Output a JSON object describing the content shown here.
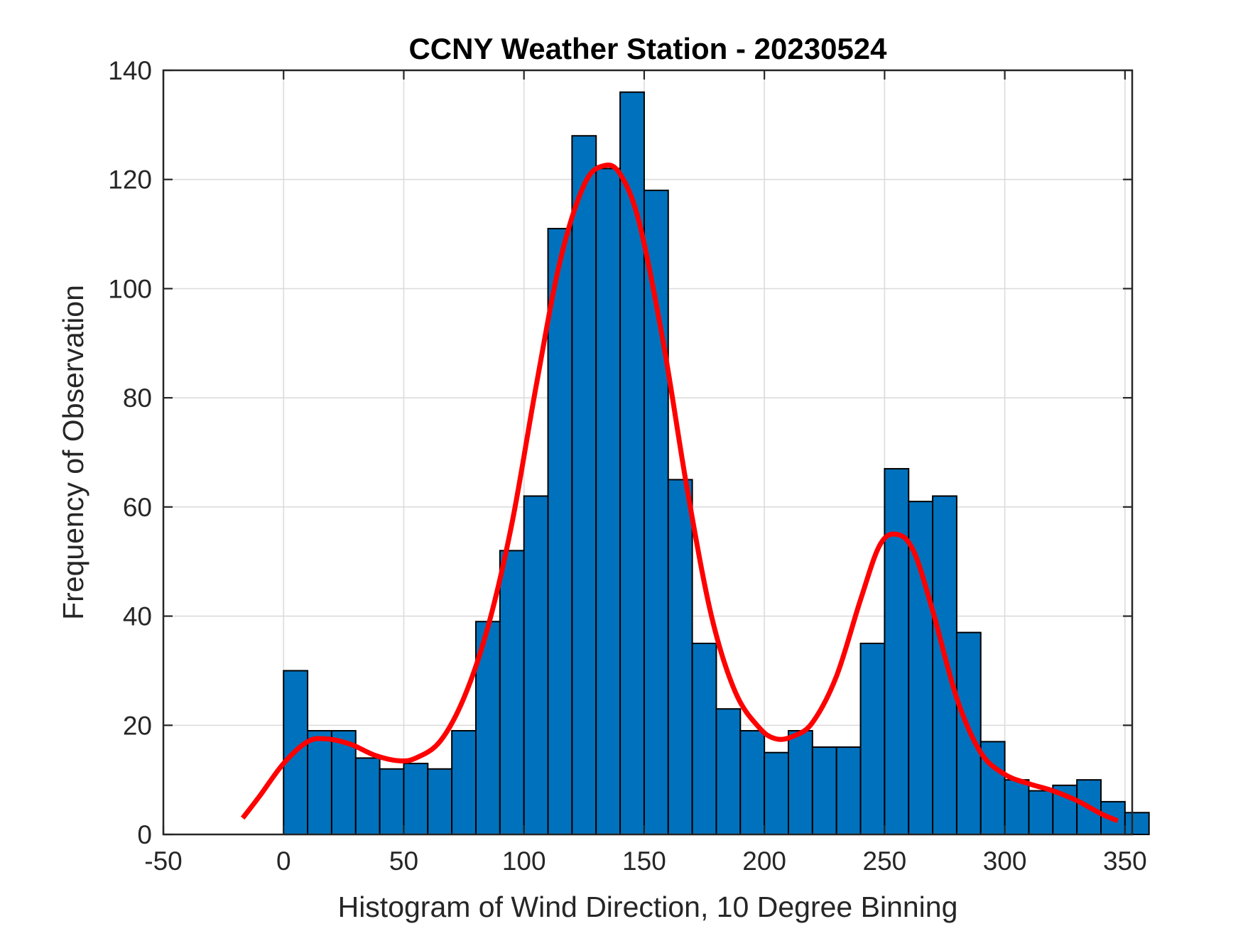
{
  "chart_data": {
    "type": "bar",
    "title": "CCNY Weather Station - 20230524",
    "xlabel": "Histogram of Wind Direction, 10 Degree Binning",
    "ylabel": "Frequency of Observation",
    "xlim": [
      -50,
      353
    ],
    "ylim": [
      0,
      140
    ],
    "xticks": [
      "-50",
      "0",
      "50",
      "100",
      "150",
      "200",
      "250",
      "300",
      "350"
    ],
    "yticks": [
      "0",
      "20",
      "40",
      "60",
      "80",
      "100",
      "120",
      "140"
    ],
    "grid": true,
    "bin_width": 10,
    "bin_edges_start": 0,
    "bar_values": [
      30,
      19,
      19,
      14,
      12,
      13,
      12,
      19,
      39,
      52,
      62,
      111,
      128,
      122,
      136,
      118,
      65,
      35,
      23,
      19,
      15,
      19,
      16,
      16,
      35,
      67,
      61,
      62,
      37,
      17,
      10,
      8,
      9,
      10,
      6,
      4
    ],
    "fit_curve": {
      "name": "density fit",
      "x": [
        -17,
        -10,
        0,
        10,
        18,
        28,
        38,
        48,
        55,
        65,
        75,
        85,
        95,
        105,
        115,
        125,
        133,
        140,
        148,
        158,
        168,
        178,
        188,
        198,
        205,
        212,
        220,
        230,
        240,
        248,
        255,
        262,
        270,
        280,
        290,
        300,
        310,
        320,
        330,
        340,
        347
      ],
      "y": [
        3,
        7,
        13,
        17,
        17.5,
        16.5,
        14.5,
        13.5,
        14,
        17,
        25,
        38,
        57,
        82,
        105,
        119,
        122.5,
        121,
        112,
        90,
        63,
        40,
        26,
        19.5,
        17.5,
        18,
        20.5,
        29,
        43,
        53,
        55,
        52,
        41,
        25,
        15,
        11,
        9.3,
        8,
        6.2,
        3.8,
        2.5
      ]
    },
    "colors": {
      "bars": "#0072bd",
      "bar_edge": "#000000",
      "fit_curve": "#ff0000"
    }
  }
}
